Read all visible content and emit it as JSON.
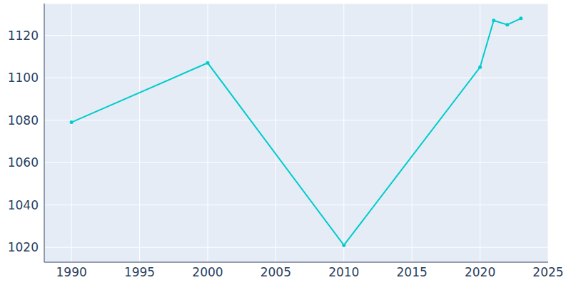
{
  "chart_data": {
    "type": "line",
    "x": [
      1990,
      2000,
      2010,
      2020,
      2021,
      2022,
      2023
    ],
    "values": [
      1079,
      1107,
      1021,
      1105,
      1127,
      1125,
      1128
    ],
    "color": "#00cccc",
    "marker": "circle",
    "xlim": [
      1988,
      2025
    ],
    "xticks": [
      1990,
      1995,
      2000,
      2005,
      2010,
      2015,
      2020,
      2025
    ],
    "ylim": [
      1013,
      1135
    ],
    "yticks": [
      1020,
      1040,
      1060,
      1080,
      1100,
      1120
    ],
    "grid": true
  }
}
